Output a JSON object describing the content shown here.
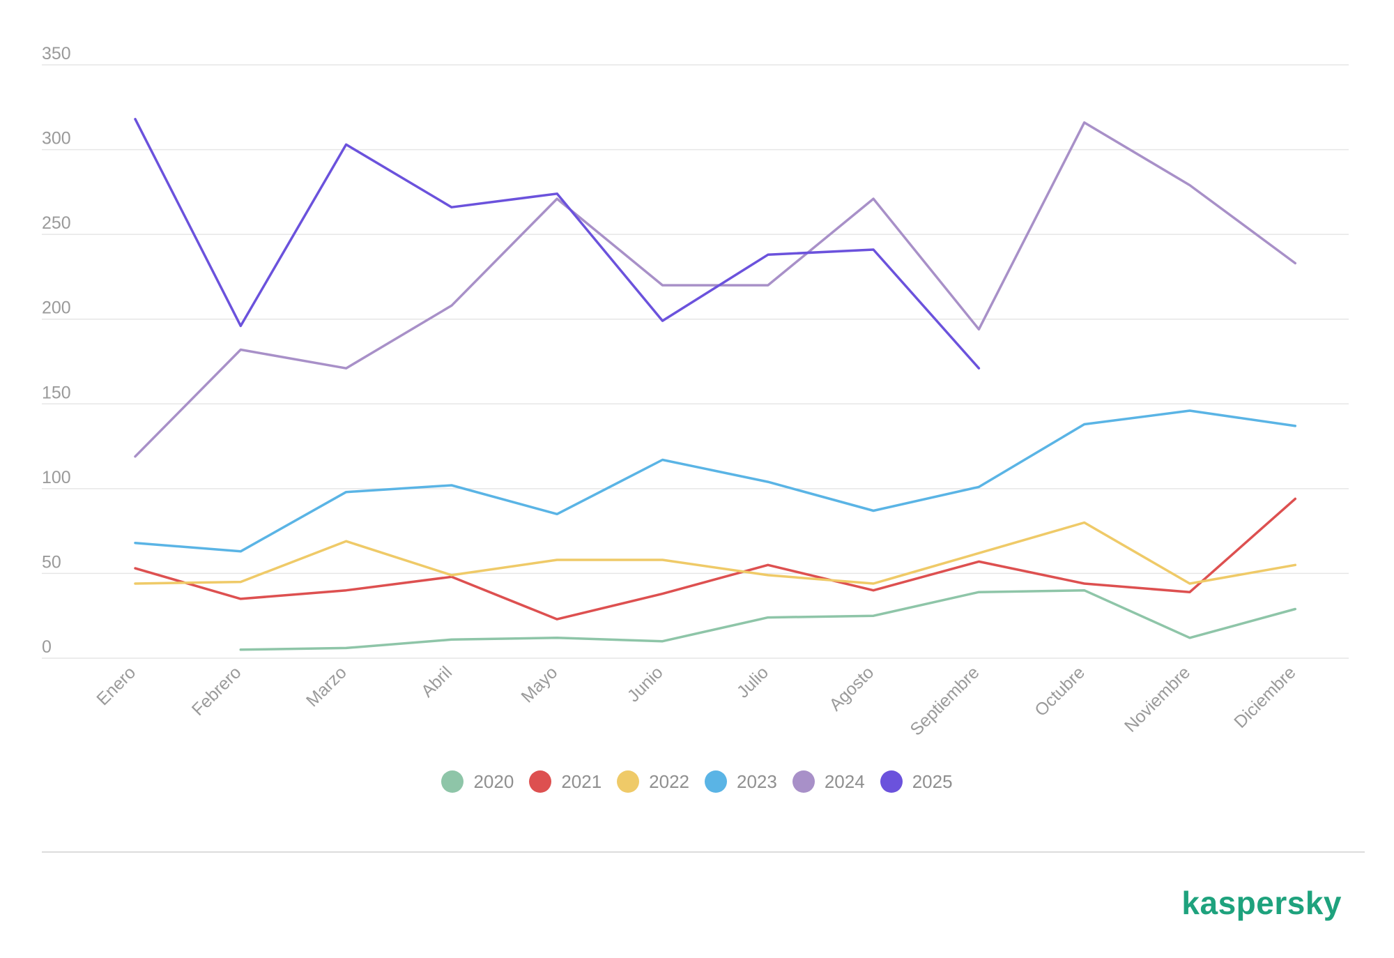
{
  "brand": {
    "name": "kaspersky",
    "color": "#1ea27d"
  },
  "chart_data": {
    "type": "line",
    "title": "",
    "xlabel": "",
    "ylabel": "",
    "ylim": [
      0,
      350
    ],
    "yticks": [
      0,
      50,
      100,
      150,
      200,
      250,
      300,
      350
    ],
    "grid": true,
    "legend_position": "bottom-center",
    "categories": [
      "Enero",
      "Febrero",
      "Marzo",
      "Abril",
      "Mayo",
      "Junio",
      "Julio",
      "Agosto",
      "Septiembre",
      "Octubre",
      "Noviembre",
      "Diciembre"
    ],
    "series": [
      {
        "name": "2020",
        "color": "#8ec5a8",
        "values": [
          null,
          5,
          6,
          11,
          12,
          10,
          24,
          25,
          39,
          40,
          12,
          29
        ]
      },
      {
        "name": "2021",
        "color": "#dd5050",
        "values": [
          53,
          35,
          40,
          48,
          23,
          38,
          55,
          40,
          57,
          44,
          39,
          94
        ]
      },
      {
        "name": "2022",
        "color": "#efca68",
        "values": [
          44,
          45,
          69,
          49,
          58,
          58,
          49,
          44,
          62,
          80,
          44,
          55
        ]
      },
      {
        "name": "2023",
        "color": "#5ab4e5",
        "values": [
          68,
          63,
          98,
          102,
          85,
          117,
          104,
          87,
          101,
          138,
          146,
          137
        ]
      },
      {
        "name": "2024",
        "color": "#a890c8",
        "values": [
          119,
          182,
          171,
          208,
          271,
          220,
          220,
          271,
          194,
          316,
          279,
          233
        ]
      },
      {
        "name": "2025",
        "color": "#6b52dc",
        "values": [
          318,
          196,
          303,
          266,
          274,
          199,
          238,
          241,
          171,
          null,
          null,
          null
        ]
      }
    ]
  }
}
